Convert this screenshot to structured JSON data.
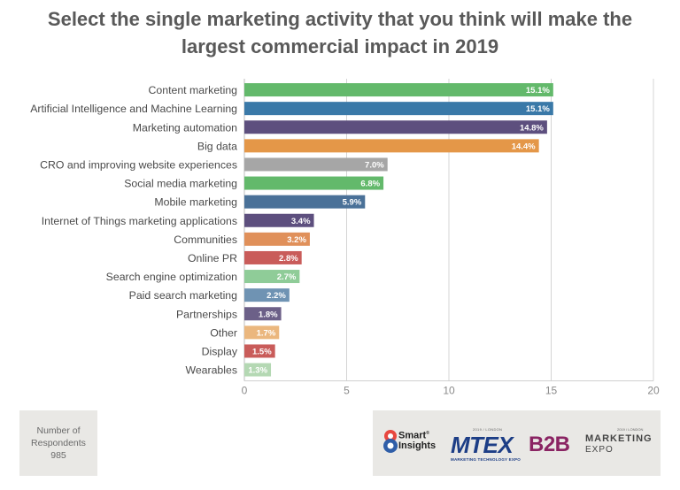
{
  "title_lines": [
    "Select the single marketing activity that you think will make the",
    "largest commercial impact in 2019"
  ],
  "respondents": {
    "label_line1": "Number of",
    "label_line2": "Respondents",
    "value": "985"
  },
  "logos": {
    "smart_insights": "Smart Insights",
    "smart_insights_mark": "®",
    "mtex_small": "2019 / LONDON",
    "mtex": "MTEX",
    "mtex_sub": "MARKETING TECHNOLOGY EXPO",
    "b2b": "B2B",
    "b2b_small": "2019 / LONDON",
    "b2b_marketing": "MARKETING",
    "b2b_expo": "EXPO"
  },
  "chart_data": {
    "type": "bar",
    "orientation": "horizontal",
    "categories": [
      "Content marketing",
      "Artificial Intelligence and Machine Learning",
      "Marketing automation",
      "Big data",
      "CRO and improving website experiences",
      "Social media marketing",
      "Mobile marketing",
      "Internet of Things marketing applications",
      "Communities",
      "Online PR",
      "Search engine optimization",
      "Paid search marketing",
      "Partnerships",
      "Other",
      "Display",
      "Wearables"
    ],
    "values": [
      15.1,
      15.1,
      14.8,
      14.4,
      7.0,
      6.8,
      5.9,
      3.4,
      3.2,
      2.8,
      2.7,
      2.2,
      1.8,
      1.7,
      1.5,
      1.3
    ],
    "value_labels": [
      "15.1%",
      "15.1%",
      "14.8%",
      "14.4%",
      "7.0%",
      "6.8%",
      "5.9%",
      "3.4%",
      "3.2%",
      "2.8%",
      "2.7%",
      "2.2%",
      "1.8%",
      "1.7%",
      "1.5%",
      "1.3%"
    ],
    "colors": [
      "#63b96b",
      "#3a79a8",
      "#5d4f7e",
      "#e49748",
      "#a6a6a6",
      "#63b96b",
      "#4a7198",
      "#5d4f7e",
      "#e0905a",
      "#c95c5a",
      "#8fcc98",
      "#6f93b3",
      "#6c6088",
      "#ebb77e",
      "#c95c5a",
      "#b4d8b3"
    ],
    "xlim": [
      0,
      20
    ],
    "xticks": [
      0,
      5,
      10,
      15,
      20
    ],
    "xtick_labels": [
      "0",
      "5",
      "10",
      "15",
      "20"
    ],
    "grid": true,
    "title": "Select the single marketing activity that you think will make the largest commercial impact in 2019"
  }
}
